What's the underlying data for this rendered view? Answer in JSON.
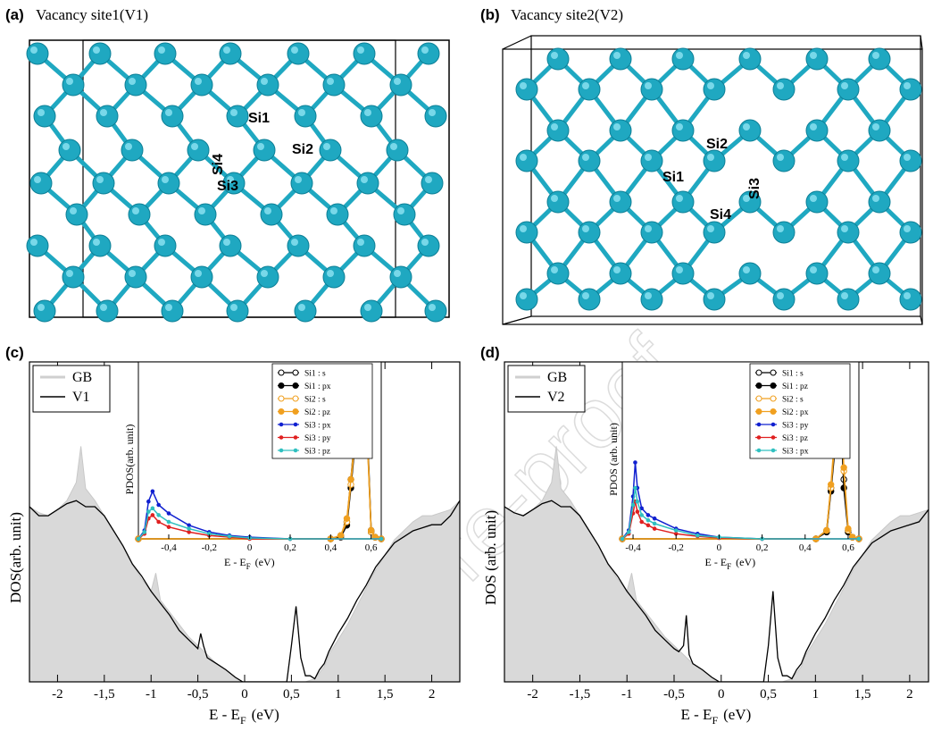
{
  "panels": {
    "a": {
      "label": "(a)",
      "title": "Vacancy site1(V1)",
      "atoms": [
        "Si1",
        "Si2",
        "Si4",
        "Si3"
      ]
    },
    "b": {
      "label": "(b)",
      "title": "Vacancy site2(V2)",
      "atoms": [
        "Si2",
        "Si1",
        "Si3",
        "Si4"
      ]
    },
    "c": {
      "label": "(c)"
    },
    "d": {
      "label": "(d)"
    }
  },
  "watermark": "Pre-proof",
  "colors": {
    "atom": "#1fa8c1",
    "bond": "#1fa8c1",
    "gb_fill": "#d9d9d9"
  },
  "chart_data": [
    {
      "id": "c",
      "type": "area",
      "xlabel": "E - E",
      "xlabel_sub": "F",
      "xlabel_unit": "(eV)",
      "ylabel": "DOS(arb. unit)",
      "xlim": [
        -2.3,
        2.3
      ],
      "ylim": [
        0,
        1
      ],
      "xticks": [
        "-2",
        "-1,5",
        "-1",
        "-0,5",
        "0",
        "0,5",
        "1",
        "1,5",
        "2"
      ],
      "legend": [
        "GB",
        "V1"
      ],
      "legend_position": "top-left",
      "series": [
        {
          "name": "GB",
          "style": "filled-grey",
          "x": [
            -2.3,
            -2.2,
            -2.1,
            -2.0,
            -1.9,
            -1.8,
            -1.75,
            -1.7,
            -1.6,
            -1.5,
            -1.4,
            -1.3,
            -1.2,
            -1.1,
            -1.0,
            -0.95,
            -0.9,
            -0.8,
            -0.7,
            -0.6,
            -0.5,
            -0.4,
            -0.3,
            -0.2,
            -0.1,
            -0.02,
            0.3,
            0.45,
            0.55,
            0.65,
            0.75,
            0.85,
            0.9,
            1.0,
            1.1,
            1.2,
            1.3,
            1.4,
            1.5,
            1.6,
            1.7,
            1.8,
            1.9,
            2.0,
            2.1,
            2.2,
            2.3
          ],
          "y": [
            0.58,
            0.56,
            0.55,
            0.57,
            0.6,
            0.66,
            0.78,
            0.64,
            0.6,
            0.55,
            0.5,
            0.45,
            0.39,
            0.34,
            0.3,
            0.36,
            0.27,
            0.23,
            0.19,
            0.15,
            0.12,
            0.09,
            0.06,
            0.04,
            0.015,
            0,
            0,
            0,
            0,
            0,
            0.01,
            0.05,
            0.09,
            0.14,
            0.19,
            0.25,
            0.31,
            0.37,
            0.42,
            0.47,
            0.5,
            0.53,
            0.55,
            0.55,
            0.56,
            0.57,
            0.6
          ]
        },
        {
          "name": "V1",
          "style": "black-line",
          "x": [
            -2.3,
            -2.2,
            -2.1,
            -2.0,
            -1.9,
            -1.8,
            -1.7,
            -1.6,
            -1.5,
            -1.4,
            -1.3,
            -1.2,
            -1.1,
            -1.0,
            -0.9,
            -0.8,
            -0.7,
            -0.6,
            -0.5,
            -0.47,
            -0.44,
            -0.4,
            -0.3,
            -0.2,
            -0.1,
            -0.02,
            0.45,
            0.5,
            0.55,
            0.6,
            0.65,
            0.7,
            0.75,
            0.8,
            0.85,
            0.9,
            1.0,
            1.1,
            1.2,
            1.3,
            1.4,
            1.5,
            1.6,
            1.7,
            1.8,
            1.9,
            2.0,
            2.1,
            2.2,
            2.3
          ],
          "y": [
            0.58,
            0.55,
            0.55,
            0.57,
            0.59,
            0.6,
            0.58,
            0.58,
            0.55,
            0.5,
            0.45,
            0.39,
            0.35,
            0.3,
            0.26,
            0.22,
            0.17,
            0.14,
            0.11,
            0.16,
            0.12,
            0.08,
            0.06,
            0.04,
            0.015,
            0,
            0,
            0.12,
            0.25,
            0.08,
            0.02,
            0.02,
            0.01,
            0.04,
            0.06,
            0.1,
            0.16,
            0.21,
            0.27,
            0.32,
            0.38,
            0.42,
            0.46,
            0.48,
            0.5,
            0.51,
            0.52,
            0.52,
            0.55,
            0.6
          ]
        }
      ],
      "inset": {
        "xlabel": "E - E",
        "xlabel_sub": "F",
        "xlabel_unit": "(eV)",
        "ylabel": "PDOS(arb. unit)",
        "xlim": [
          -0.55,
          0.65
        ],
        "ylim": [
          0,
          1
        ],
        "xticks": [
          "-0,4",
          "-0,2",
          "0",
          "0,2",
          "0,4",
          "0,6"
        ],
        "legend": [
          "Si1 : s",
          "Si1 : px",
          "Si2 : s",
          "Si2 : pz",
          "Si3 : px",
          "Si3 : py",
          "Si3 : pz"
        ],
        "series": [
          {
            "name": "Si1 : s",
            "color": "#000000",
            "marker": "open",
            "x": [
              -0.55,
              0.4,
              0.45,
              0.48,
              0.5,
              0.52,
              0.54,
              0.55,
              0.56,
              0.58,
              0.6,
              0.62,
              0.65
            ],
            "y": [
              0,
              0,
              0.02,
              0.1,
              0.35,
              0.62,
              0.8,
              0.96,
              0.98,
              0.7,
              0.05,
              0.01,
              0
            ]
          },
          {
            "name": "Si1 : px",
            "color": "#000000",
            "marker": "filled",
            "x": [
              -0.55,
              0.4,
              0.45,
              0.48,
              0.5,
              0.52,
              0.54,
              0.55,
              0.56,
              0.58,
              0.6,
              0.62,
              0.65
            ],
            "y": [
              0,
              0,
              0.01,
              0.08,
              0.3,
              0.55,
              0.75,
              0.9,
              0.93,
              0.65,
              0.04,
              0.01,
              0
            ]
          },
          {
            "name": "Si2 : s",
            "color": "#f0a020",
            "marker": "open",
            "x": [
              -0.55,
              0.4,
              0.45,
              0.48,
              0.5,
              0.52,
              0.54,
              0.55,
              0.56,
              0.58,
              0.6,
              0.62,
              0.65
            ],
            "y": [
              0,
              0,
              0.02,
              0.1,
              0.32,
              0.58,
              0.74,
              0.88,
              0.9,
              0.62,
              0.04,
              0.01,
              0
            ]
          },
          {
            "name": "Si2 : pz",
            "color": "#f0a020",
            "marker": "filled",
            "x": [
              -0.55,
              0.4,
              0.45,
              0.48,
              0.5,
              0.52,
              0.54,
              0.55,
              0.56,
              0.58,
              0.6,
              0.62,
              0.65
            ],
            "y": [
              0,
              0,
              0.02,
              0.12,
              0.35,
              0.6,
              0.78,
              0.92,
              0.94,
              0.66,
              0.05,
              0.01,
              0
            ]
          },
          {
            "name": "Si3 : px",
            "color": "#1020d0",
            "marker": "small",
            "x": [
              -0.55,
              -0.52,
              -0.5,
              -0.48,
              -0.45,
              -0.4,
              -0.3,
              -0.2,
              -0.1,
              0.0,
              0.2,
              0.65
            ],
            "y": [
              0,
              0.05,
              0.22,
              0.28,
              0.2,
              0.15,
              0.08,
              0.04,
              0.02,
              0.01,
              0,
              0
            ]
          },
          {
            "name": "Si3 : py",
            "color": "#e02020",
            "marker": "small",
            "x": [
              -0.55,
              -0.52,
              -0.5,
              -0.48,
              -0.45,
              -0.4,
              -0.3,
              -0.2,
              -0.1,
              0.0,
              0.2,
              0.65
            ],
            "y": [
              0,
              0.03,
              0.12,
              0.14,
              0.1,
              0.07,
              0.04,
              0.02,
              0.01,
              0,
              0,
              0
            ]
          },
          {
            "name": "Si3 : pz",
            "color": "#30c0c0",
            "marker": "small",
            "x": [
              -0.55,
              -0.52,
              -0.5,
              -0.48,
              -0.45,
              -0.4,
              -0.3,
              -0.2,
              -0.1,
              0.0,
              0.2,
              0.65
            ],
            "y": [
              0,
              0.04,
              0.16,
              0.18,
              0.14,
              0.1,
              0.06,
              0.03,
              0.015,
              0.005,
              0,
              0
            ]
          }
        ]
      }
    },
    {
      "id": "d",
      "type": "area",
      "xlabel": "E - E",
      "xlabel_sub": "F",
      "xlabel_unit": "(eV)",
      "ylabel": "DOS (arb. unit)",
      "xlim": [
        -2.3,
        2.2
      ],
      "ylim": [
        0,
        1
      ],
      "xticks": [
        "-2",
        "-1,5",
        "-1",
        "-0,5",
        "0",
        "0,5",
        "1",
        "1,5",
        "2"
      ],
      "legend": [
        "GB",
        "V2"
      ],
      "legend_position": "top-left",
      "series": [
        {
          "name": "GB",
          "style": "filled-grey",
          "x": [
            -2.3,
            -2.2,
            -2.1,
            -2.0,
            -1.9,
            -1.8,
            -1.75,
            -1.7,
            -1.6,
            -1.5,
            -1.4,
            -1.3,
            -1.2,
            -1.1,
            -1.0,
            -0.95,
            -0.9,
            -0.8,
            -0.7,
            -0.6,
            -0.5,
            -0.4,
            -0.3,
            -0.2,
            -0.1,
            -0.02,
            0.3,
            0.45,
            0.55,
            0.65,
            0.75,
            0.85,
            0.9,
            1.0,
            1.1,
            1.2,
            1.3,
            1.4,
            1.5,
            1.6,
            1.7,
            1.8,
            1.9,
            2.0,
            2.1,
            2.2
          ],
          "y": [
            0.58,
            0.56,
            0.55,
            0.57,
            0.6,
            0.66,
            0.78,
            0.64,
            0.6,
            0.55,
            0.5,
            0.45,
            0.39,
            0.34,
            0.3,
            0.36,
            0.27,
            0.23,
            0.19,
            0.15,
            0.12,
            0.09,
            0.06,
            0.04,
            0.015,
            0,
            0,
            0,
            0,
            0,
            0.01,
            0.05,
            0.09,
            0.14,
            0.19,
            0.25,
            0.31,
            0.37,
            0.42,
            0.47,
            0.5,
            0.53,
            0.55,
            0.55,
            0.56,
            0.57
          ]
        },
        {
          "name": "V2",
          "style": "black-line",
          "x": [
            -2.3,
            -2.2,
            -2.1,
            -2.0,
            -1.9,
            -1.8,
            -1.7,
            -1.6,
            -1.5,
            -1.4,
            -1.3,
            -1.2,
            -1.1,
            -1.0,
            -0.9,
            -0.8,
            -0.7,
            -0.6,
            -0.5,
            -0.45,
            -0.4,
            -0.37,
            -0.34,
            -0.3,
            -0.2,
            -0.1,
            -0.02,
            0.45,
            0.5,
            0.55,
            0.6,
            0.65,
            0.7,
            0.75,
            0.8,
            0.85,
            0.9,
            1.0,
            1.1,
            1.2,
            1.3,
            1.4,
            1.5,
            1.6,
            1.7,
            1.8,
            1.9,
            2.0,
            2.1,
            2.2
          ],
          "y": [
            0.58,
            0.56,
            0.55,
            0.57,
            0.59,
            0.6,
            0.58,
            0.58,
            0.55,
            0.5,
            0.45,
            0.39,
            0.35,
            0.3,
            0.26,
            0.22,
            0.17,
            0.14,
            0.11,
            0.1,
            0.12,
            0.22,
            0.09,
            0.06,
            0.04,
            0.015,
            0,
            0,
            0.12,
            0.3,
            0.08,
            0.02,
            0.02,
            0.01,
            0.04,
            0.06,
            0.1,
            0.16,
            0.21,
            0.27,
            0.32,
            0.38,
            0.42,
            0.46,
            0.48,
            0.5,
            0.51,
            0.52,
            0.53,
            0.57
          ]
        }
      ],
      "inset": {
        "xlabel": "E - E",
        "xlabel_sub": "F",
        "xlabel_unit": "(eV)",
        "ylabel": "PDOS (arb. unit)",
        "xlim": [
          -0.45,
          0.65
        ],
        "ylim": [
          0,
          1
        ],
        "xticks": [
          "-0,4",
          "-0,2",
          "0",
          "0,2",
          "0,4",
          "0,6"
        ],
        "legend": [
          "Si1 : s",
          "Si1 : pz",
          "Si2 : s",
          "Si2 : px",
          "Si3 : py",
          "Si3 : pz",
          "Si3 : px"
        ],
        "series": [
          {
            "name": "Si1 : s",
            "color": "#000000",
            "marker": "open",
            "x": [
              -0.45,
              0.45,
              0.5,
              0.52,
              0.54,
              0.55,
              0.56,
              0.57,
              0.58,
              0.6,
              0.62,
              0.65
            ],
            "y": [
              0,
              0,
              0.05,
              0.3,
              0.6,
              0.75,
              0.8,
              0.62,
              0.35,
              0.05,
              0.01,
              0
            ]
          },
          {
            "name": "Si1 : pz",
            "color": "#000000",
            "marker": "filled",
            "x": [
              -0.45,
              0.45,
              0.5,
              0.52,
              0.54,
              0.55,
              0.56,
              0.57,
              0.58,
              0.6,
              0.62,
              0.65
            ],
            "y": [
              0,
              0,
              0.04,
              0.28,
              0.55,
              0.7,
              0.75,
              0.6,
              0.3,
              0.04,
              0.01,
              0
            ]
          },
          {
            "name": "Si2 : s",
            "color": "#f0a020",
            "marker": "open",
            "x": [
              -0.45,
              0.45,
              0.5,
              0.52,
              0.54,
              0.55,
              0.56,
              0.57,
              0.58,
              0.6,
              0.62,
              0.65
            ],
            "y": [
              0,
              0,
              0.05,
              0.3,
              0.6,
              0.8,
              0.85,
              0.7,
              0.4,
              0.05,
              0.01,
              0
            ]
          },
          {
            "name": "Si2 : px",
            "color": "#f0a020",
            "marker": "filled",
            "x": [
              -0.45,
              0.45,
              0.5,
              0.52,
              0.54,
              0.55,
              0.56,
              0.57,
              0.58,
              0.6,
              0.62,
              0.65
            ],
            "y": [
              0,
              0,
              0.05,
              0.32,
              0.65,
              0.9,
              0.98,
              0.75,
              0.42,
              0.06,
              0.01,
              0
            ]
          },
          {
            "name": "Si3 : py",
            "color": "#1020d0",
            "marker": "small",
            "x": [
              -0.45,
              -0.42,
              -0.4,
              -0.39,
              -0.38,
              -0.36,
              -0.33,
              -0.3,
              -0.2,
              -0.1,
              0.0,
              0.2,
              0.65
            ],
            "y": [
              0,
              0.05,
              0.25,
              0.45,
              0.3,
              0.18,
              0.14,
              0.12,
              0.06,
              0.03,
              0.01,
              0,
              0
            ]
          },
          {
            "name": "Si3 : pz",
            "color": "#e02020",
            "marker": "small",
            "x": [
              -0.45,
              -0.42,
              -0.4,
              -0.39,
              -0.38,
              -0.36,
              -0.33,
              -0.3,
              -0.2,
              -0.1,
              0.0,
              0.2,
              0.65
            ],
            "y": [
              0,
              0.03,
              0.15,
              0.22,
              0.16,
              0.1,
              0.08,
              0.06,
              0.03,
              0.015,
              0.005,
              0,
              0
            ]
          },
          {
            "name": "Si3 : px",
            "color": "#30c0c0",
            "marker": "small",
            "x": [
              -0.45,
              -0.42,
              -0.4,
              -0.39,
              -0.38,
              -0.36,
              -0.33,
              -0.3,
              -0.2,
              -0.1,
              0.0,
              0.2,
              0.65
            ],
            "y": [
              0,
              0.04,
              0.2,
              0.3,
              0.22,
              0.14,
              0.11,
              0.09,
              0.05,
              0.02,
              0.01,
              0,
              0
            ]
          }
        ]
      }
    }
  ]
}
